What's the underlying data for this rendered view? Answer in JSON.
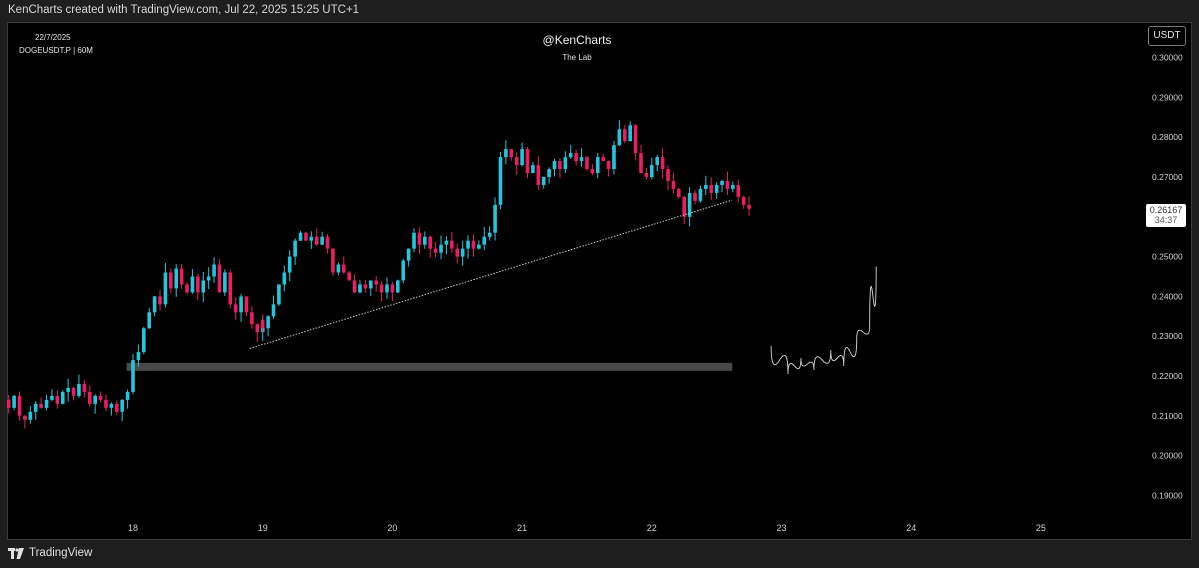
{
  "header": {
    "credit": "KenCharts created with TradingView.com, Jul 22, 2025 15:25 UTC+1"
  },
  "chart_info": {
    "date": "22/7/2025",
    "symbol": "DOGEUSDT.P | 60M",
    "author": "@KenCharts",
    "subtitle": "The Lab",
    "currency_button": "USDT",
    "last_price": "0.26167",
    "countdown": "34:37"
  },
  "footer": {
    "brand": "TradingView"
  },
  "colors": {
    "background": "#000000",
    "up_candle": "#26c6da",
    "down_candle": "#e91e63",
    "trendline": "#cfcfcf",
    "support_zone": "#555555",
    "axis_text": "#d0d0d0"
  },
  "chart_data": {
    "type": "candlestick",
    "title": "@KenCharts",
    "subtitle": "The Lab",
    "symbol": "DOGEUSDT.P",
    "timeframe": "60M",
    "y_axis": {
      "ticks": [
        0.19,
        0.2,
        0.21,
        0.22,
        0.23,
        0.24,
        0.25,
        0.26,
        0.27,
        0.28,
        0.29,
        0.3
      ],
      "tick_labels": [
        "0.19000",
        "0.20000",
        "0.21000",
        "0.22000",
        "0.23000",
        "0.24000",
        "0.25000",
        "0.27000",
        "0.28000",
        "0.29000",
        "0.30000"
      ],
      "range": [
        0.183,
        0.307
      ]
    },
    "x_axis": {
      "unit": "day (July 2025)",
      "tick_labels": [
        "18",
        "19",
        "20",
        "21",
        "22",
        "23",
        "24",
        "25"
      ],
      "tick_days": [
        18,
        19,
        20,
        21,
        22,
        23,
        24,
        25
      ],
      "range": [
        17.03,
        26.07
      ]
    },
    "candles_daily_closes": [
      {
        "day": 17.0,
        "closes": [
          0.214,
          0.212,
          0.215,
          0.21,
          0.209,
          0.211,
          0.213,
          0.212,
          0.214,
          0.215,
          0.213,
          0.216,
          0.217,
          0.215,
          0.218,
          0.216,
          0.213,
          0.215,
          0.214,
          0.212,
          0.213,
          0.211,
          0.214,
          0.216,
          0.221
        ]
      },
      {
        "day": 18.0,
        "closes": [
          0.224,
          0.226,
          0.232,
          0.236,
          0.24,
          0.238,
          0.246,
          0.242,
          0.247,
          0.243,
          0.241,
          0.245,
          0.241,
          0.244,
          0.245,
          0.248,
          0.241,
          0.246,
          0.238,
          0.236,
          0.24,
          0.236,
          0.233,
          0.231,
          0.234
        ]
      },
      {
        "day": 19.0,
        "closes": [
          0.232,
          0.235,
          0.238,
          0.243,
          0.246,
          0.25,
          0.254,
          0.256,
          0.254,
          0.255,
          0.253,
          0.255,
          0.252,
          0.246,
          0.248,
          0.246,
          0.244,
          0.241,
          0.243,
          0.242,
          0.244,
          0.243,
          0.241,
          0.243,
          0.242
        ]
      },
      {
        "day": 20.0,
        "closes": [
          0.241,
          0.244,
          0.249,
          0.252,
          0.256,
          0.253,
          0.255,
          0.252,
          0.251,
          0.253,
          0.254,
          0.252,
          0.25,
          0.252,
          0.254,
          0.252,
          0.253,
          0.255,
          0.256,
          0.263,
          0.275,
          0.277,
          0.275,
          0.273,
          0.276
        ]
      },
      {
        "day": 21.0,
        "closes": [
          0.277,
          0.271,
          0.273,
          0.268,
          0.27,
          0.272,
          0.274,
          0.272,
          0.275,
          0.276,
          0.274,
          0.275,
          0.272,
          0.271,
          0.275,
          0.274,
          0.272,
          0.278,
          0.282,
          0.279,
          0.283,
          0.276,
          0.271,
          0.27,
          0.272
        ]
      },
      {
        "day": 22.0,
        "closes": [
          0.273,
          0.275,
          0.272,
          0.269,
          0.267,
          0.265,
          0.26,
          0.266,
          0.264,
          0.267,
          0.268,
          0.266,
          0.268,
          0.269,
          0.267,
          0.268,
          0.265,
          0.263,
          0.262
        ]
      }
    ],
    "trendline": {
      "start": {
        "day": 18.9,
        "price": 0.2269
      },
      "end": {
        "day": 22.62,
        "price": 0.2642
      },
      "style": "dotted"
    },
    "support_zone": {
      "from_day": 17.95,
      "to_day": 22.62,
      "low": 0.2213,
      "high": 0.2233
    },
    "projection_sketch": {
      "style": "hand-drawn line",
      "description_points": [
        [
          22.92,
          0.2275
        ],
        [
          23.05,
          0.2205
        ],
        [
          23.15,
          0.2245
        ],
        [
          23.25,
          0.2215
        ],
        [
          23.38,
          0.2265
        ],
        [
          23.48,
          0.2225
        ],
        [
          23.58,
          0.2295
        ],
        [
          23.68,
          0.2325
        ],
        [
          23.73,
          0.2475
        ]
      ]
    },
    "last_price": 0.26167
  }
}
